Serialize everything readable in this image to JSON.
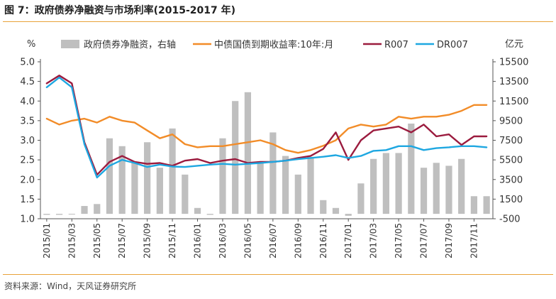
{
  "figure": {
    "title": "图 7：政府债券净融资与市场利率(2015-2017 年)",
    "source": "资料来源：Wind，天风证券研究所"
  },
  "chart_data": {
    "type": "bar+line",
    "left_axis": {
      "unit_label": "%",
      "ticks": [
        "5.0",
        "4.5",
        "4.0",
        "3.5",
        "3.0",
        "2.5",
        "2.0",
        "1.5",
        "1.0"
      ],
      "ylim": [
        1.0,
        5.0
      ]
    },
    "right_axis": {
      "unit_label": "亿元",
      "ticks": [
        "15500",
        "13500",
        "11500",
        "9500",
        "7500",
        "5500",
        "3500",
        "1500",
        "-500"
      ],
      "ylim": [
        -500,
        15500
      ]
    },
    "x_ticks": [
      "2015/01",
      "2015/03",
      "2015/05",
      "2015/07",
      "2015/09",
      "2015/11",
      "2016/01",
      "2016/03",
      "2016/05",
      "2016/07",
      "2016/09",
      "2016/11",
      "2017/01",
      "2017/03",
      "2017/05",
      "2017/07",
      "2017/09",
      "2017/11"
    ],
    "x_tick_start": 0,
    "x_tick_step": 2,
    "months": [
      "2015/01",
      "2015/02",
      "2015/03",
      "2015/04",
      "2015/05",
      "2015/06",
      "2015/07",
      "2015/08",
      "2015/09",
      "2015/10",
      "2015/11",
      "2015/12",
      "2016/01",
      "2016/02",
      "2016/03",
      "2016/04",
      "2016/05",
      "2016/06",
      "2016/07",
      "2016/08",
      "2016/09",
      "2016/10",
      "2016/11",
      "2016/12",
      "2017/01",
      "2017/02",
      "2017/03",
      "2017/04",
      "2017/05",
      "2017/06",
      "2017/07",
      "2017/08",
      "2017/09",
      "2017/10",
      "2017/11",
      "2017/12"
    ],
    "bars": {
      "name": "政府债券净融资，右轴",
      "color": "#bfbfbf",
      "axis": "right",
      "values": [
        -100,
        -100,
        0,
        800,
        1000,
        7700,
        6900,
        5200,
        7300,
        4700,
        8700,
        4000,
        600,
        -100,
        7700,
        11500,
        12400,
        5300,
        8300,
        5900,
        4000,
        5800,
        1400,
        600,
        -200,
        3100,
        5600,
        6200,
        6200,
        9200,
        4700,
        5200,
        4900,
        5600,
        1800,
        1800
      ]
    },
    "lines": [
      {
        "name": "中债国债到期收益率:10年:月",
        "color": "#f28c28",
        "axis": "left",
        "values": [
          3.55,
          3.4,
          3.5,
          3.55,
          3.45,
          3.6,
          3.5,
          3.45,
          3.25,
          3.05,
          3.15,
          2.9,
          2.82,
          2.85,
          2.85,
          2.9,
          2.95,
          3.0,
          2.9,
          2.75,
          2.68,
          2.75,
          2.86,
          3.0,
          3.3,
          3.4,
          3.35,
          3.4,
          3.6,
          3.55,
          3.6,
          3.6,
          3.65,
          3.75,
          3.9,
          3.9
        ]
      },
      {
        "name": "R007",
        "color": "#9b1b3e",
        "axis": "left",
        "values": [
          4.45,
          4.65,
          4.45,
          2.95,
          2.12,
          2.45,
          2.6,
          2.45,
          2.4,
          2.42,
          2.35,
          2.48,
          2.52,
          2.42,
          2.48,
          2.52,
          2.42,
          2.45,
          2.45,
          2.48,
          2.55,
          2.6,
          2.78,
          3.2,
          2.5,
          3.0,
          3.25,
          3.3,
          3.35,
          3.2,
          3.4,
          3.1,
          3.15,
          2.88,
          3.1,
          3.1
        ]
      },
      {
        "name": "DR007",
        "color": "#1ea7e1",
        "axis": "left",
        "values": [
          4.35,
          4.6,
          4.35,
          2.9,
          2.05,
          2.35,
          2.5,
          2.42,
          2.32,
          2.38,
          2.33,
          2.32,
          2.35,
          2.38,
          2.4,
          2.38,
          2.4,
          2.42,
          2.45,
          2.48,
          2.52,
          2.55,
          2.58,
          2.62,
          2.55,
          2.6,
          2.73,
          2.75,
          2.85,
          2.85,
          2.75,
          2.8,
          2.82,
          2.85,
          2.85,
          2.82
        ]
      }
    ],
    "legend_placement": "top",
    "grid": false
  }
}
